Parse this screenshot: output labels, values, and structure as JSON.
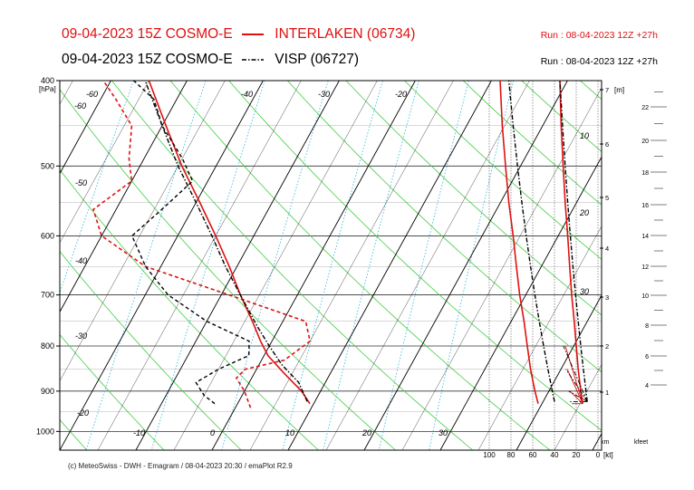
{
  "header": {
    "line1": {
      "title": "09-04-2023 15Z COSMO-E",
      "station": "INTERLAKEN (06734)",
      "run": "Run : 08-04-2023 12Z +27h"
    },
    "line2": {
      "title": "09-04-2023 15Z COSMO-E",
      "station": "VISP (06727)",
      "run": "Run : 08-04-2023 12Z +27h"
    }
  },
  "footer": "(c) MeteoSwiss - DWH - Emagram / 08-04-2023  20:30 / emaPlot R2.9",
  "colors": {
    "interlaken": "#e01010",
    "visp": "#000000",
    "dry_adiabat": "#44cc44",
    "isotherm": "#000000",
    "mixing_ratio": "#44bbdd"
  },
  "chart_data": {
    "type": "line",
    "pressure_unit": "[hPa]",
    "pressure_ticks": [
      "400",
      "500",
      "600",
      "700",
      "800",
      "900",
      "1000"
    ],
    "isotherm_labels": [
      "-60",
      "-60",
      "-50",
      "-40",
      "-30",
      "-20",
      "-10",
      "0",
      "10",
      "20",
      "30",
      "-60",
      "-50",
      "-40",
      "-30",
      "-20",
      "10",
      "20",
      "30"
    ],
    "height_axis": {
      "unit": "[m]",
      "label": "km",
      "ticks": [
        "1",
        "2",
        "3",
        "4",
        "5",
        "6",
        "7"
      ]
    },
    "feet_axis": {
      "label": "kfeet",
      "ticks": [
        "4",
        "6",
        "8",
        "10",
        "12",
        "14",
        "16",
        "18",
        "20",
        "22"
      ]
    },
    "wind_axis": {
      "unit": "[kt]",
      "ticks": [
        "100",
        "80",
        "60",
        "40",
        "20",
        "0"
      ]
    },
    "series": [
      {
        "name": "INTERLAKEN (06734)",
        "temperature": [
          [
            930,
            9.5
          ],
          [
            900,
            7.5
          ],
          [
            860,
            4
          ],
          [
            820,
            0.5
          ],
          [
            790,
            -1.5
          ],
          [
            750,
            -4
          ],
          [
            700,
            -7.5
          ],
          [
            650,
            -11
          ],
          [
            600,
            -15
          ],
          [
            550,
            -19.5
          ],
          [
            500,
            -24.5
          ],
          [
            450,
            -29.5
          ],
          [
            400,
            -35
          ]
        ],
        "dewpoint": [
          [
            940,
            2
          ],
          [
            900,
            0
          ],
          [
            870,
            -2
          ],
          [
            850,
            -1.5
          ],
          [
            830,
            3
          ],
          [
            790,
            5
          ],
          [
            750,
            3
          ],
          [
            700,
            -9
          ],
          [
            650,
            -22
          ],
          [
            600,
            -30
          ],
          [
            560,
            -33
          ],
          [
            520,
            -30
          ],
          [
            490,
            -32
          ],
          [
            450,
            -34
          ],
          [
            420,
            -38
          ],
          [
            400,
            -41
          ]
        ]
      },
      {
        "name": "VISP (06727)",
        "temperature": [
          [
            925,
            9
          ],
          [
            880,
            6.5
          ],
          [
            840,
            3
          ],
          [
            800,
            0
          ],
          [
            760,
            -3
          ],
          [
            700,
            -7.5
          ],
          [
            650,
            -11.5
          ],
          [
            600,
            -15.5
          ],
          [
            550,
            -20
          ],
          [
            500,
            -25
          ],
          [
            450,
            -30
          ],
          [
            400,
            -35.5
          ]
        ],
        "dewpoint": [
          [
            930,
            -3
          ],
          [
            910,
            -5
          ],
          [
            880,
            -7
          ],
          [
            850,
            -5
          ],
          [
            820,
            -2
          ],
          [
            790,
            -3
          ],
          [
            750,
            -10
          ],
          [
            700,
            -17
          ],
          [
            650,
            -22
          ],
          [
            600,
            -26
          ],
          [
            560,
            -24
          ],
          [
            520,
            -22
          ],
          [
            490,
            -25
          ],
          [
            450,
            -30
          ],
          [
            420,
            -33
          ],
          [
            400,
            -37
          ]
        ]
      }
    ],
    "wind_profile": [
      {
        "name": "INTERLAKEN (06734)",
        "pressure": [
          930,
          900,
          850,
          800,
          750,
          700,
          650,
          600,
          550,
          500,
          450,
          400
        ],
        "speed": [
          15,
          18,
          22,
          25,
          28,
          32,
          35,
          38,
          42,
          45,
          48,
          50
        ]
      },
      {
        "name": "VISP (06727)",
        "pressure": [
          925,
          900,
          850,
          800,
          750,
          700,
          650,
          600,
          550,
          500,
          450,
          400
        ],
        "speed": [
          8,
          10,
          14,
          18,
          22,
          26,
          30,
          34,
          38,
          42,
          46,
          50
        ]
      }
    ]
  }
}
